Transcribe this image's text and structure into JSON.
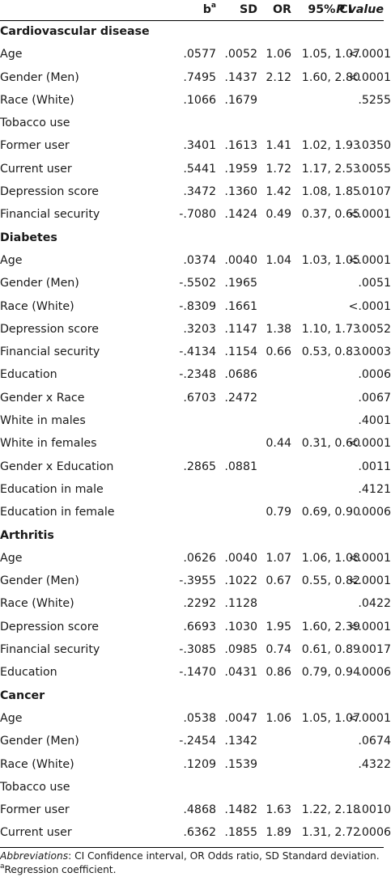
{
  "header": {
    "b_main": "b",
    "b_sup": "a",
    "sd": "SD",
    "or": "OR",
    "ci": "95% CI",
    "p": "P value"
  },
  "sections": [
    {
      "title": "Cardiovascular disease",
      "rows": [
        {
          "label": "Age",
          "b": ".0577",
          "sd": ".0052",
          "or": "1.06",
          "ci": "1.05, 1.07",
          "p": "<.0001"
        },
        {
          "label": "Gender (Men)",
          "b": ".7495",
          "sd": ".1437",
          "or": "2.12",
          "ci": "1.60, 2.80",
          "p": "<.0001"
        },
        {
          "label": "Race (White)",
          "b": ".1066",
          "sd": ".1679",
          "or": "",
          "ci": "",
          "p": ".5255"
        },
        {
          "label": "Tobacco use",
          "b": "",
          "sd": "",
          "or": "",
          "ci": "",
          "p": ""
        },
        {
          "label": "Former user",
          "b": ".3401",
          "sd": ".1613",
          "or": "1.41",
          "ci": "1.02, 1.93",
          "p": ".0350"
        },
        {
          "label": "Current user",
          "b": ".5441",
          "sd": ".1959",
          "or": "1.72",
          "ci": "1.17, 2.53",
          "p": ".0055"
        },
        {
          "label": "Depression score",
          "b": ".3472",
          "sd": ".1360",
          "or": "1.42",
          "ci": "1.08, 1.85",
          "p": ".0107"
        },
        {
          "label": "Financial security",
          "b": "-.7080",
          "sd": ".1424",
          "or": "0.49",
          "ci": "0.37, 0.65",
          "p": "<.0001"
        }
      ]
    },
    {
      "title": "Diabetes",
      "rows": [
        {
          "label": "Age",
          "b": ".0374",
          "sd": ".0040",
          "or": "1.04",
          "ci": "1.03, 1.05",
          "p": "<.0001"
        },
        {
          "label": "Gender (Men)",
          "b": "-.5502",
          "sd": ".1965",
          "or": "",
          "ci": "",
          "p": ".0051"
        },
        {
          "label": "Race (White)",
          "b": "-.8309",
          "sd": ".1661",
          "or": "",
          "ci": "",
          "p": "<.0001"
        },
        {
          "label": "Depression score",
          "b": ".3203",
          "sd": ".1147",
          "or": "1.38",
          "ci": "1.10, 1.73",
          "p": ".0052"
        },
        {
          "label": "Financial security",
          "b": "-.4134",
          "sd": ".1154",
          "or": "0.66",
          "ci": "0.53, 0.83",
          "p": ".0003"
        },
        {
          "label": "Education",
          "b": "-.2348",
          "sd": ".0686",
          "or": "",
          "ci": "",
          "p": ".0006"
        },
        {
          "label": "Gender x Race",
          "b": ".6703",
          "sd": ".2472",
          "or": "",
          "ci": "",
          "p": ".0067"
        },
        {
          "label": "White in males",
          "b": "",
          "sd": "",
          "or": "",
          "ci": "",
          "p": ".4001"
        },
        {
          "label": "White in females",
          "b": "",
          "sd": "",
          "or": "0.44",
          "ci": "0.31, 0.60",
          "p": "<.0001"
        },
        {
          "label": "Gender x Education",
          "b": ".2865",
          "sd": ".0881",
          "or": "",
          "ci": "",
          "p": ".0011"
        },
        {
          "label": "Education in male",
          "b": "",
          "sd": "",
          "or": "",
          "ci": "",
          "p": ".4121"
        },
        {
          "label": "Education in female",
          "b": "",
          "sd": "",
          "or": "0.79",
          "ci": "0.69, 0.90",
          "p": ".0006"
        }
      ]
    },
    {
      "title": "Arthritis",
      "rows": [
        {
          "label": "Age",
          "b": ".0626",
          "sd": ".0040",
          "or": "1.07",
          "ci": "1.06, 1.08",
          "p": "<.0001"
        },
        {
          "label": "Gender (Men)",
          "b": "-.3955",
          "sd": ".1022",
          "or": "0.67",
          "ci": "0.55, 0.82",
          "p": "<.0001"
        },
        {
          "label": "Race (White)",
          "b": ".2292",
          "sd": ".1128",
          "or": "",
          "ci": "",
          "p": ".0422"
        },
        {
          "label": "Depression score",
          "b": ".6693",
          "sd": ".1030",
          "or": "1.95",
          "ci": "1.60, 2.39",
          "p": "<.0001"
        },
        {
          "label": "Financial security",
          "b": "-.3085",
          "sd": ".0985",
          "or": "0.74",
          "ci": "0.61, 0.89",
          "p": ".0017"
        },
        {
          "label": "Education",
          "b": "-.1470",
          "sd": ".0431",
          "or": "0.86",
          "ci": "0.79, 0.94",
          "p": ".0006"
        }
      ]
    },
    {
      "title": "Cancer",
      "rows": [
        {
          "label": "Age",
          "b": ".0538",
          "sd": ".0047",
          "or": "1.06",
          "ci": "1.05, 1.07",
          "p": "<.0001"
        },
        {
          "label": "Gender (Men)",
          "b": "-.2454",
          "sd": ".1342",
          "or": "",
          "ci": "",
          "p": ".0674"
        },
        {
          "label": "Race (White)",
          "b": ".1209",
          "sd": ".1539",
          "or": "",
          "ci": "",
          "p": ".4322"
        },
        {
          "label": "Tobacco use",
          "b": "",
          "sd": "",
          "or": "",
          "ci": "",
          "p": ""
        },
        {
          "label": "Former user",
          "b": ".4868",
          "sd": ".1482",
          "or": "1.63",
          "ci": "1.22, 2.18",
          "p": ".0010"
        },
        {
          "label": "Current user",
          "b": ".6362",
          "sd": ".1855",
          "or": "1.89",
          "ci": "1.31, 2.72",
          "p": ".0006"
        }
      ]
    }
  ],
  "footnotes": {
    "abbrev_label": "Abbreviations",
    "abbrev_text": ": CI Confidence interval, OR Odds ratio, SD Standard deviation.",
    "sup_marker": "a",
    "sup_text": "Regression coefficient."
  }
}
